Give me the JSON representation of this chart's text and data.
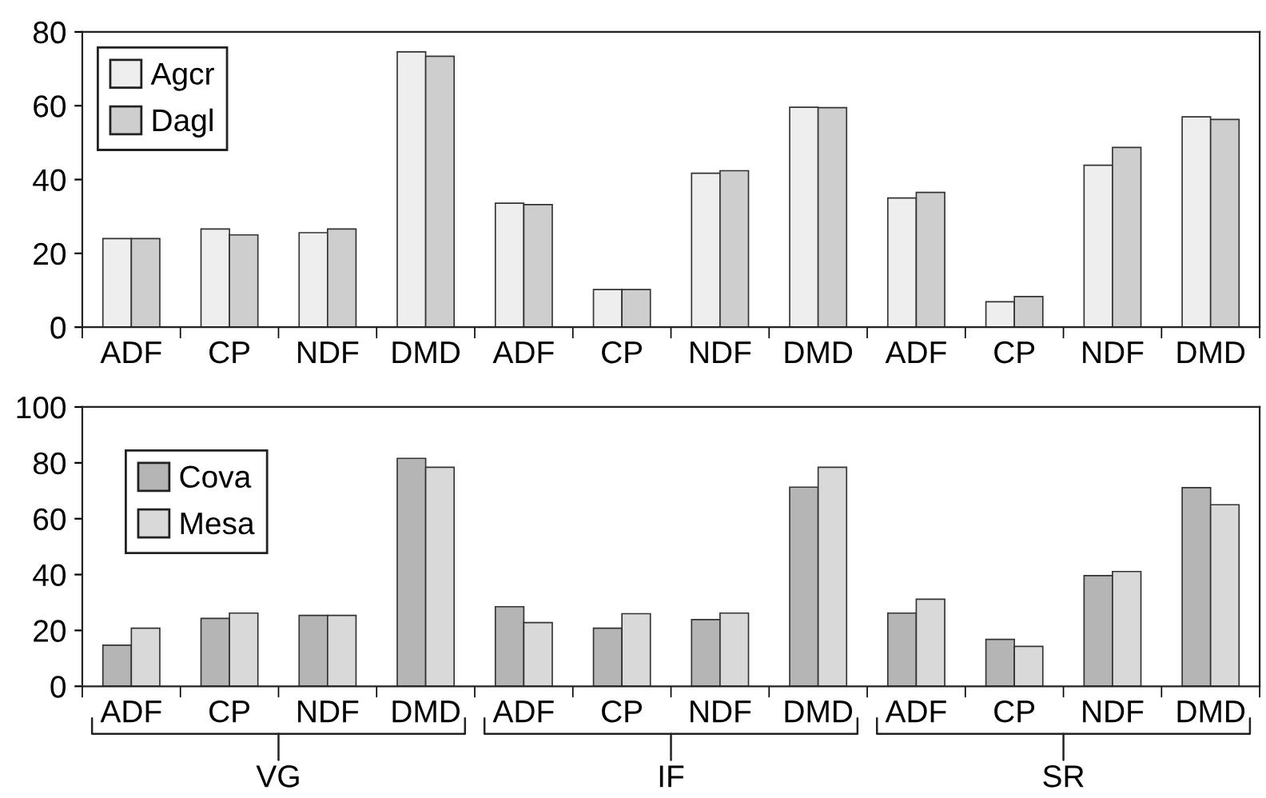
{
  "chart_data": [
    {
      "type": "bar",
      "categories": [
        "ADF",
        "CP",
        "NDF",
        "DMD",
        "ADF",
        "CP",
        "NDF",
        "DMD",
        "ADF",
        "CP",
        "NDF",
        "DMD"
      ],
      "series": [
        {
          "name": "Agcr",
          "color": "#eeeeee",
          "values": [
            24,
            26.6,
            25.6,
            74.6,
            33.6,
            10.2,
            41.7,
            59.6,
            35,
            6.9,
            43.9,
            57
          ]
        },
        {
          "name": "Dagl",
          "color": "#cecece",
          "values": [
            24,
            25,
            26.6,
            73.4,
            33.2,
            10.2,
            42.4,
            59.5,
            36.5,
            8.3,
            48.7,
            56.3
          ]
        }
      ],
      "ylim": [
        0,
        80
      ],
      "yticks": [
        0,
        20,
        40,
        60,
        80
      ],
      "legend": "top left",
      "grid": false
    },
    {
      "type": "bar",
      "categories": [
        "ADF",
        "CP",
        "NDF",
        "DMD",
        "ADF",
        "CP",
        "NDF",
        "DMD",
        "ADF",
        "CP",
        "NDF",
        "DMD"
      ],
      "series": [
        {
          "name": "Cova",
          "color": "#b5b5b5",
          "values": [
            14.7,
            24.3,
            25.4,
            81.6,
            28.5,
            20.8,
            23.9,
            71.3,
            26.2,
            16.8,
            39.6,
            71.1
          ]
        },
        {
          "name": "Mesa",
          "color": "#d9d9d9",
          "values": [
            20.8,
            26.2,
            25.4,
            78.4,
            22.8,
            26,
            26.2,
            78.4,
            31.2,
            14.3,
            41.1,
            65
          ]
        }
      ],
      "ylim": [
        0,
        100
      ],
      "yticks": [
        0,
        20,
        40,
        60,
        80,
        100
      ],
      "legend": "top left",
      "grid": false,
      "annotations": [
        "VG",
        "IF",
        "SR"
      ]
    }
  ]
}
